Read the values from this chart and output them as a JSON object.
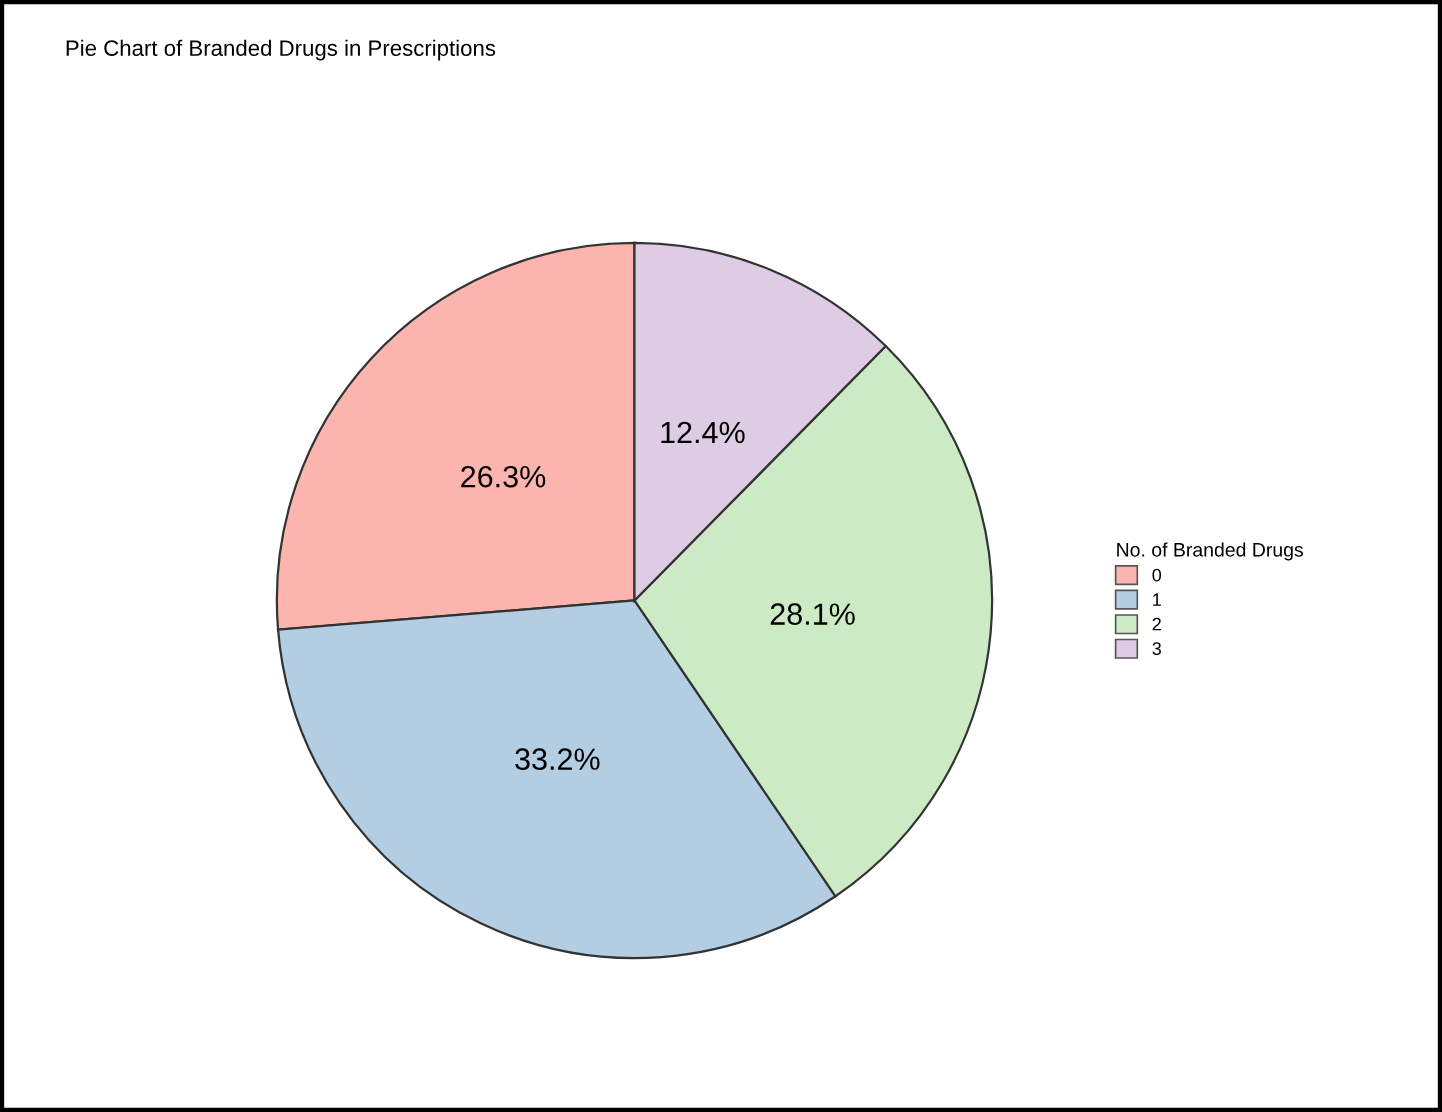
{
  "chart_data": {
    "type": "pie",
    "title": "Pie Chart of Branded Drugs in Prescriptions",
    "legend_title": "No. of Branded Drugs",
    "categories": [
      "0",
      "1",
      "2",
      "3"
    ],
    "values": [
      26.3,
      33.2,
      28.1,
      12.4
    ],
    "colors": [
      "#fbb4ae",
      "#b3cde3",
      "#ccebc5",
      "#decbe4"
    ],
    "value_labels": [
      "26.3%",
      "33.2%",
      "28.1%",
      "12.4%"
    ],
    "legend": "right"
  }
}
